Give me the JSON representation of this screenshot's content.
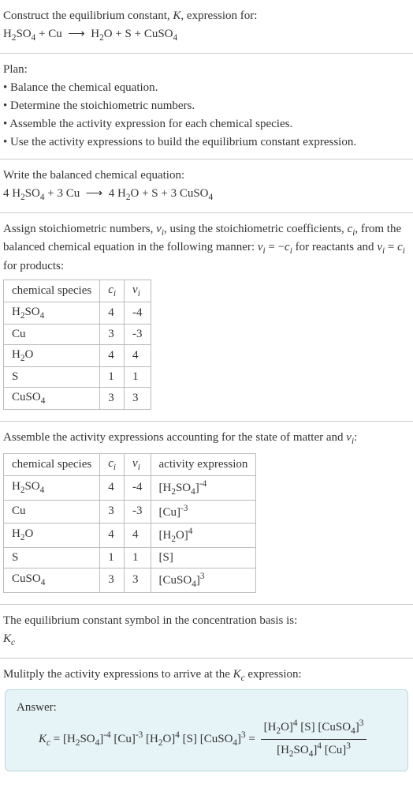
{
  "header": {
    "line1": "Construct the equilibrium constant, <span class=\"italic\">K</span>, expression for:",
    "equation": "H<sub>2</sub>SO<sub>4</sub> + Cu &nbsp;&#10230;&nbsp; H<sub>2</sub>O + S + CuSO<sub>4</sub>"
  },
  "plan": {
    "title": "Plan:",
    "items": [
      "• Balance the chemical equation.",
      "• Determine the stoichiometric numbers.",
      "• Assemble the activity expression for each chemical species.",
      "• Use the activity expressions to build the equilibrium constant expression."
    ]
  },
  "balanced": {
    "title": "Write the balanced chemical equation:",
    "equation": "4 H<sub>2</sub>SO<sub>4</sub> + 3 Cu &nbsp;&#10230;&nbsp; 4 H<sub>2</sub>O + S + 3 CuSO<sub>4</sub>"
  },
  "stoich": {
    "intro": "Assign stoichiometric numbers, <span class=\"italic\">ν<sub>i</sub></span>, using the stoichiometric coefficients, <span class=\"italic\">c<sub>i</sub></span>, from the balanced chemical equation in the following manner: <span class=\"italic\">ν<sub>i</sub></span> = &minus;<span class=\"italic\">c<sub>i</sub></span> for reactants and <span class=\"italic\">ν<sub>i</sub></span> = <span class=\"italic\">c<sub>i</sub></span> for products:",
    "headers": [
      "chemical species",
      "<span class=\"italic\">c<sub>i</sub></span>",
      "<span class=\"italic\">ν<sub>i</sub></span>"
    ],
    "rows": [
      [
        "H<sub>2</sub>SO<sub>4</sub>",
        "4",
        "-4"
      ],
      [
        "Cu",
        "3",
        "-3"
      ],
      [
        "H<sub>2</sub>O",
        "4",
        "4"
      ],
      [
        "S",
        "1",
        "1"
      ],
      [
        "CuSO<sub>4</sub>",
        "3",
        "3"
      ]
    ]
  },
  "activity": {
    "intro": "Assemble the activity expressions accounting for the state of matter and <span class=\"italic\">ν<sub>i</sub></span>:",
    "headers": [
      "chemical species",
      "<span class=\"italic\">c<sub>i</sub></span>",
      "<span class=\"italic\">ν<sub>i</sub></span>",
      "activity expression"
    ],
    "rows": [
      [
        "H<sub>2</sub>SO<sub>4</sub>",
        "4",
        "-4",
        "[H<sub>2</sub>SO<sub>4</sub>]<sup>-4</sup>"
      ],
      [
        "Cu",
        "3",
        "-3",
        "[Cu]<sup>-3</sup>"
      ],
      [
        "H<sub>2</sub>O",
        "4",
        "4",
        "[H<sub>2</sub>O]<sup>4</sup>"
      ],
      [
        "S",
        "1",
        "1",
        "[S]"
      ],
      [
        "CuSO<sub>4</sub>",
        "3",
        "3",
        "[CuSO<sub>4</sub>]<sup>3</sup>"
      ]
    ]
  },
  "symbol": {
    "line1": "The equilibrium constant symbol in the concentration basis is:",
    "line2": "<span class=\"italic\">K<sub>c</sub></span>"
  },
  "multiply": {
    "text": "Mulitply the activity expressions to arrive at the <span class=\"italic\">K<sub>c</sub></span> expression:"
  },
  "answer": {
    "label": "Answer:",
    "lhs": "<span class=\"italic\">K<sub>c</sub></span> = [H<sub>2</sub>SO<sub>4</sub>]<sup>-4</sup> [Cu]<sup>-3</sup> [H<sub>2</sub>O]<sup>4</sup> [S] [CuSO<sub>4</sub>]<sup>3</sup> = ",
    "frac_num": "[H<sub>2</sub>O]<sup>4</sup> [S] [CuSO<sub>4</sub>]<sup>3</sup>",
    "frac_den": "[H<sub>2</sub>SO<sub>4</sub>]<sup>4</sup> [Cu]<sup>3</sup>"
  },
  "colors": {
    "text": "#333333",
    "border": "#cccccc",
    "table_border": "#bbbbbb",
    "answer_bg": "#e6f3f7",
    "answer_border": "#b8d8e0"
  }
}
